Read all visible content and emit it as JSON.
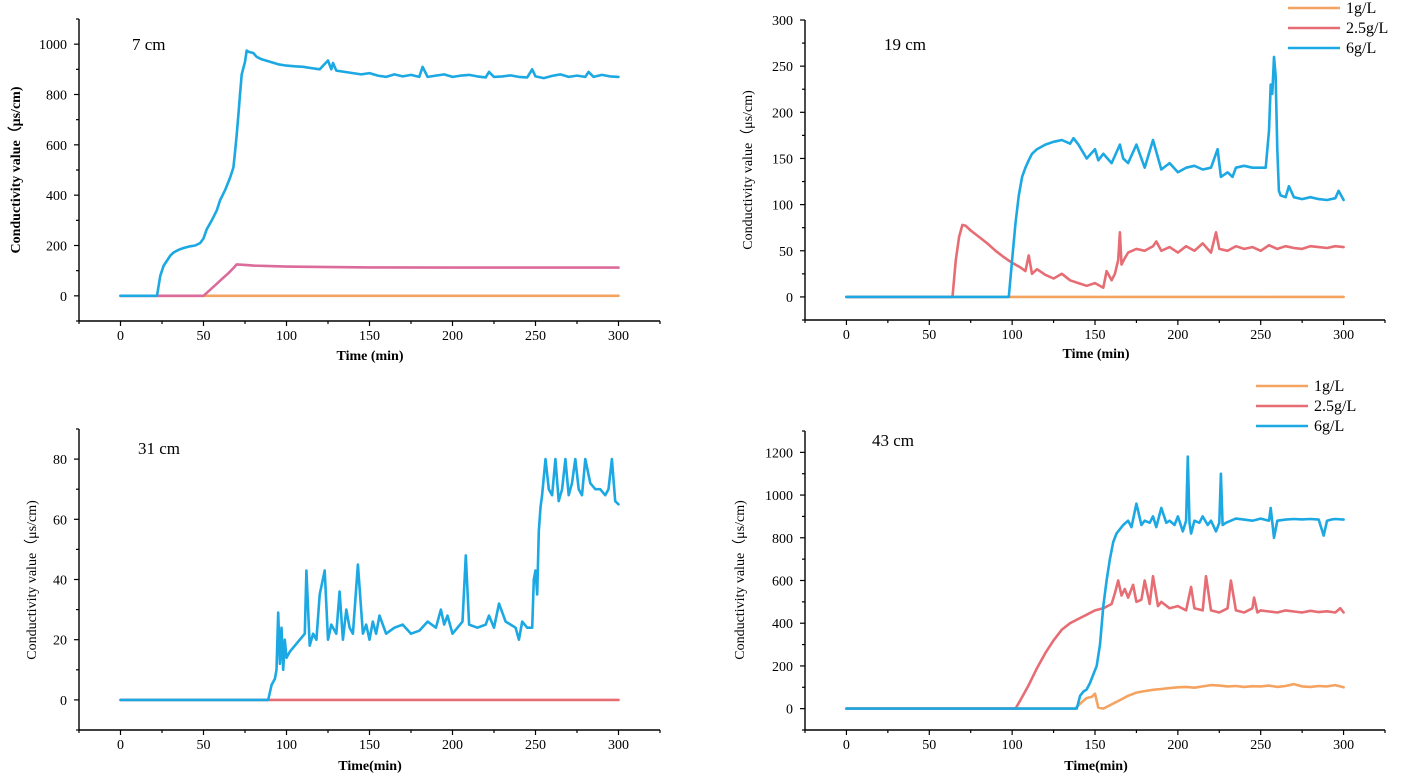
{
  "colors": {
    "orange": "#F5A360",
    "pink": "#DB6B9A",
    "red": "#E76D74",
    "blue": "#1CA8E3"
  },
  "chart_data": [
    {
      "type": "line",
      "title": "7 cm",
      "xlabel": "Time (min)",
      "ylabel": "Conductivity value（μs/cm)",
      "xlim": [
        -25,
        325
      ],
      "ylim": [
        -100,
        1100
      ],
      "xticks": [
        0,
        50,
        100,
        150,
        200,
        250,
        300
      ],
      "yticks": [
        0,
        200,
        400,
        600,
        800,
        1000
      ],
      "legend": [],
      "series": [
        {
          "name": "1g/L",
          "color": "orange",
          "x": [
            0,
            300
          ],
          "y": [
            0,
            0
          ]
        },
        {
          "name": "2.5g/L",
          "color": "pink",
          "x": [
            0,
            50,
            55,
            60,
            65,
            68,
            70,
            75,
            80,
            90,
            100,
            120,
            150,
            200,
            250,
            300
          ],
          "y": [
            0,
            0,
            30,
            60,
            90,
            110,
            125,
            123,
            120,
            118,
            116,
            115,
            113,
            112,
            112,
            112
          ]
        },
        {
          "name": "6g/L",
          "color": "blue",
          "x": [
            0,
            22,
            24,
            26,
            28,
            30,
            32,
            35,
            38,
            42,
            45,
            48,
            50,
            52,
            55,
            58,
            60,
            63,
            66,
            68,
            69,
            70,
            71,
            72,
            73,
            75,
            76,
            77,
            80,
            82,
            85,
            90,
            95,
            100,
            105,
            110,
            115,
            120,
            125,
            127,
            128,
            130,
            135,
            140,
            145,
            150,
            155,
            160,
            165,
            170,
            175,
            180,
            182,
            185,
            190,
            195,
            200,
            205,
            210,
            215,
            220,
            222,
            225,
            230,
            235,
            240,
            245,
            248,
            250,
            255,
            260,
            265,
            270,
            275,
            280,
            282,
            285,
            290,
            295,
            300
          ],
          "y": [
            0,
            0,
            80,
            120,
            140,
            160,
            172,
            183,
            190,
            197,
            200,
            210,
            228,
            265,
            300,
            340,
            380,
            420,
            470,
            510,
            570,
            640,
            720,
            800,
            880,
            930,
            975,
            970,
            965,
            950,
            940,
            930,
            920,
            915,
            912,
            910,
            905,
            900,
            935,
            900,
            925,
            895,
            890,
            885,
            880,
            885,
            875,
            870,
            880,
            872,
            878,
            870,
            910,
            870,
            875,
            880,
            870,
            875,
            878,
            872,
            868,
            890,
            870,
            872,
            876,
            870,
            868,
            900,
            872,
            865,
            874,
            880,
            870,
            875,
            870,
            890,
            870,
            878,
            872,
            870
          ]
        }
      ]
    },
    {
      "type": "line",
      "title": "19 cm",
      "xlabel": "Time (min)",
      "ylabel": "Conductivity value（μs/cm)",
      "xlim": [
        -25,
        325
      ],
      "ylim": [
        -25,
        300
      ],
      "xticks": [
        0,
        50,
        100,
        150,
        200,
        250,
        300
      ],
      "yticks": [
        0,
        50,
        100,
        150,
        200,
        250,
        300
      ],
      "legend": [
        "1g/L",
        "2.5g/L",
        "6g/L"
      ],
      "series": [
        {
          "name": "1g/L",
          "color": "orange",
          "x": [
            0,
            300
          ],
          "y": [
            0,
            0
          ]
        },
        {
          "name": "2.5g/L",
          "color": "red",
          "x": [
            0,
            64,
            66,
            68,
            70,
            72,
            75,
            80,
            85,
            90,
            95,
            100,
            105,
            108,
            110,
            112,
            115,
            120,
            125,
            130,
            135,
            140,
            145,
            150,
            155,
            157,
            160,
            162,
            164,
            165,
            166,
            168,
            170,
            175,
            180,
            185,
            187,
            190,
            195,
            200,
            205,
            210,
            215,
            220,
            223,
            225,
            230,
            235,
            240,
            245,
            250,
            255,
            260,
            265,
            270,
            275,
            280,
            285,
            290,
            295,
            300
          ],
          "y": [
            0,
            0,
            40,
            65,
            78,
            77,
            72,
            65,
            58,
            50,
            43,
            37,
            32,
            28,
            45,
            25,
            30,
            24,
            20,
            25,
            18,
            15,
            12,
            15,
            10,
            28,
            18,
            25,
            40,
            70,
            35,
            42,
            48,
            52,
            50,
            55,
            60,
            50,
            54,
            48,
            55,
            50,
            58,
            48,
            70,
            52,
            50,
            55,
            52,
            54,
            50,
            56,
            52,
            55,
            53,
            52,
            55,
            54,
            53,
            55,
            54
          ]
        },
        {
          "name": "6g/L",
          "color": "blue",
          "x": [
            0,
            98,
            100,
            102,
            104,
            106,
            108,
            110,
            112,
            115,
            120,
            125,
            130,
            135,
            137,
            140,
            145,
            150,
            152,
            155,
            160,
            165,
            167,
            170,
            175,
            180,
            185,
            190,
            195,
            200,
            205,
            210,
            215,
            220,
            224,
            226,
            230,
            233,
            235,
            240,
            245,
            250,
            253,
            255,
            256,
            257,
            258,
            259,
            260,
            261,
            262,
            265,
            267,
            270,
            275,
            280,
            285,
            290,
            295,
            297,
            300
          ],
          "y": [
            0,
            0,
            40,
            80,
            110,
            130,
            140,
            148,
            155,
            160,
            165,
            168,
            170,
            166,
            172,
            165,
            150,
            160,
            148,
            155,
            145,
            165,
            150,
            145,
            165,
            140,
            170,
            138,
            145,
            135,
            140,
            142,
            138,
            140,
            160,
            130,
            135,
            130,
            140,
            142,
            140,
            140,
            140,
            180,
            230,
            220,
            260,
            240,
            160,
            115,
            110,
            108,
            120,
            108,
            106,
            108,
            106,
            105,
            107,
            115,
            105
          ]
        }
      ]
    },
    {
      "type": "line",
      "title": "31 cm",
      "xlabel": "Time(min)",
      "ylabel": "Conductivity value（μs/cm)",
      "xlim": [
        -25,
        325
      ],
      "ylim": [
        -10,
        90
      ],
      "xticks": [
        0,
        50,
        100,
        150,
        200,
        250,
        300
      ],
      "yticks": [
        0,
        20,
        40,
        60,
        80
      ],
      "legend": [],
      "series": [
        {
          "name": "2.5g/L",
          "color": "red",
          "x": [
            0,
            300
          ],
          "y": [
            0,
            0
          ]
        },
        {
          "name": "6g/L",
          "color": "blue",
          "x": [
            0,
            89,
            91,
            93,
            94,
            95,
            96,
            97,
            98,
            99,
            100,
            102,
            105,
            108,
            111,
            112,
            114,
            116,
            118,
            120,
            123,
            125,
            127,
            130,
            132,
            134,
            136,
            138,
            140,
            143,
            146,
            148,
            150,
            152,
            154,
            156,
            160,
            165,
            170,
            175,
            180,
            185,
            190,
            193,
            195,
            197,
            200,
            203,
            206,
            208,
            210,
            215,
            220,
            222,
            225,
            228,
            232,
            235,
            238,
            240,
            242,
            245,
            248,
            249,
            250,
            251,
            252,
            253,
            254,
            256,
            258,
            260,
            262,
            264,
            266,
            268,
            270,
            272,
            274,
            276,
            278,
            280,
            283,
            286,
            289,
            292,
            294,
            296,
            298,
            300
          ],
          "y": [
            0,
            0,
            5,
            7,
            10,
            29,
            12,
            24,
            10,
            20,
            14,
            16,
            18,
            20,
            22,
            43,
            18,
            22,
            20,
            35,
            43,
            20,
            25,
            22,
            36,
            20,
            30,
            24,
            22,
            45,
            22,
            25,
            20,
            26,
            22,
            28,
            22,
            24,
            25,
            22,
            23,
            26,
            24,
            30,
            25,
            28,
            22,
            24,
            26,
            48,
            25,
            24,
            25,
            28,
            24,
            32,
            26,
            25,
            24,
            20,
            26,
            24,
            24,
            40,
            43,
            35,
            56,
            64,
            68,
            80,
            70,
            68,
            80,
            66,
            70,
            80,
            68,
            72,
            80,
            70,
            68,
            80,
            72,
            70,
            70,
            68,
            70,
            80,
            66,
            65
          ]
        }
      ]
    },
    {
      "type": "line",
      "title": "43 cm",
      "xlabel": "Time(min)",
      "ylabel": "Conductivity value（μs/cm)",
      "xlim": [
        -25,
        325
      ],
      "ylim": [
        -100,
        1300
      ],
      "xticks": [
        0,
        50,
        100,
        150,
        200,
        250,
        300
      ],
      "yticks": [
        0,
        200,
        400,
        600,
        800,
        1000,
        1200
      ],
      "legend": [
        "1g/L",
        "2.5g/L",
        "6g/L"
      ],
      "series": [
        {
          "name": "1g/L",
          "color": "orange",
          "x": [
            0,
            138,
            142,
            145,
            148,
            150,
            152,
            155,
            160,
            165,
            170,
            175,
            180,
            185,
            190,
            195,
            200,
            205,
            210,
            215,
            220,
            225,
            230,
            235,
            240,
            245,
            250,
            255,
            260,
            265,
            270,
            275,
            280,
            285,
            290,
            295,
            300
          ],
          "y": [
            0,
            0,
            30,
            50,
            55,
            70,
            5,
            0,
            20,
            40,
            60,
            75,
            82,
            88,
            92,
            96,
            100,
            102,
            98,
            104,
            110,
            108,
            104,
            106,
            102,
            105,
            104,
            108,
            102,
            106,
            115,
            104,
            102,
            106,
            104,
            110,
            100
          ]
        },
        {
          "name": "2.5g/L",
          "color": "red",
          "x": [
            0,
            102,
            105,
            110,
            115,
            120,
            125,
            130,
            135,
            140,
            145,
            150,
            155,
            160,
            162,
            164,
            166,
            168,
            170,
            173,
            175,
            178,
            180,
            183,
            185,
            188,
            190,
            195,
            200,
            205,
            208,
            210,
            215,
            217,
            220,
            225,
            230,
            232,
            235,
            240,
            245,
            246,
            248,
            250,
            255,
            260,
            265,
            270,
            275,
            280,
            285,
            290,
            295,
            298,
            300
          ],
          "y": [
            0,
            0,
            40,
            110,
            190,
            260,
            320,
            370,
            400,
            420,
            440,
            460,
            470,
            490,
            540,
            600,
            530,
            560,
            520,
            580,
            500,
            510,
            600,
            490,
            620,
            480,
            500,
            470,
            480,
            460,
            570,
            470,
            460,
            620,
            460,
            450,
            470,
            600,
            460,
            450,
            470,
            520,
            450,
            460,
            455,
            450,
            460,
            455,
            450,
            458,
            452,
            456,
            450,
            470,
            450
          ]
        },
        {
          "name": "6g/L",
          "color": "blue",
          "x": [
            0,
            139,
            141,
            143,
            145,
            147,
            149,
            151,
            153,
            155,
            157,
            159,
            161,
            163,
            165,
            167,
            170,
            172,
            175,
            178,
            180,
            183,
            185,
            187,
            190,
            193,
            195,
            198,
            200,
            203,
            205,
            206,
            207,
            208,
            210,
            213,
            215,
            218,
            220,
            223,
            225,
            226,
            227,
            229,
            232,
            235,
            240,
            245,
            250,
            255,
            256,
            258,
            260,
            265,
            270,
            275,
            280,
            285,
            288,
            290,
            293,
            295,
            300
          ],
          "y": [
            0,
            0,
            60,
            80,
            90,
            120,
            160,
            200,
            300,
            480,
            600,
            700,
            780,
            820,
            840,
            860,
            880,
            850,
            960,
            860,
            880,
            870,
            900,
            850,
            940,
            870,
            880,
            860,
            900,
            830,
            880,
            1180,
            870,
            820,
            880,
            870,
            900,
            860,
            880,
            830,
            870,
            1100,
            860,
            870,
            880,
            890,
            885,
            880,
            890,
            880,
            940,
            800,
            880,
            885,
            888,
            886,
            888,
            885,
            810,
            880,
            886,
            888,
            885
          ]
        }
      ]
    }
  ]
}
